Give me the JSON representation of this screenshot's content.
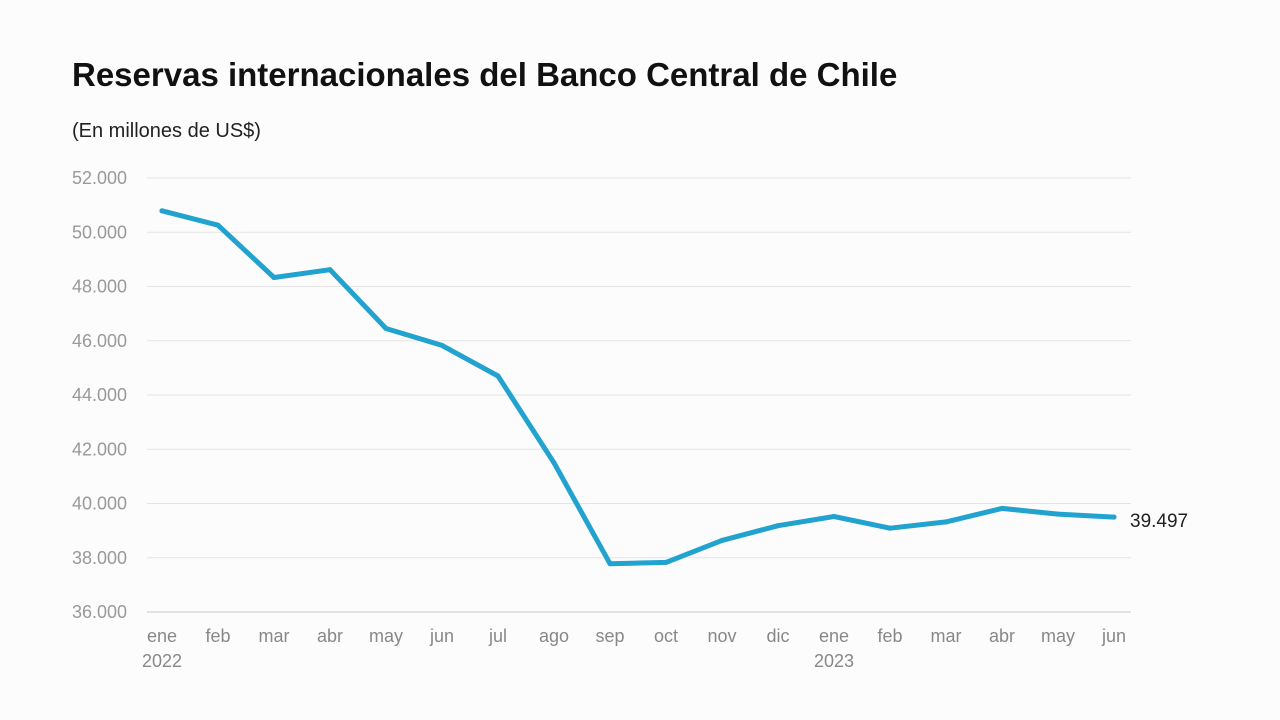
{
  "chart_data": {
    "type": "line",
    "title": "Reservas internacionales del Banco Central de Chile",
    "subtitle": "(En millones de US$)",
    "xlabel": "",
    "ylabel": "",
    "ylim": [
      36000,
      52000
    ],
    "yticks": [
      36000,
      38000,
      40000,
      42000,
      44000,
      46000,
      48000,
      50000,
      52000
    ],
    "ytick_labels": [
      "36.000",
      "38.000",
      "40.000",
      "42.000",
      "44.000",
      "46.000",
      "48.000",
      "50.000",
      "52.000"
    ],
    "categories": [
      "ene",
      "feb",
      "mar",
      "abr",
      "may",
      "jun",
      "jul",
      "ago",
      "sep",
      "oct",
      "nov",
      "dic",
      "ene",
      "feb",
      "mar",
      "abr",
      "may",
      "jun"
    ],
    "year_labels": [
      "2022",
      "",
      "",
      "",
      "",
      "",
      "",
      "",
      "",
      "",
      "",
      "",
      "2023",
      "",
      "",
      "",
      "",
      ""
    ],
    "series": [
      {
        "values": [
          50790,
          50260,
          48330,
          48620,
          46450,
          45830,
          44700,
          41500,
          37780,
          37830,
          38640,
          39180,
          39520,
          39090,
          39320,
          39820,
          39610,
          39497
        ]
      }
    ],
    "end_label": "39.497",
    "line_color": "#22a3cf",
    "grid": true,
    "legend": "none"
  }
}
